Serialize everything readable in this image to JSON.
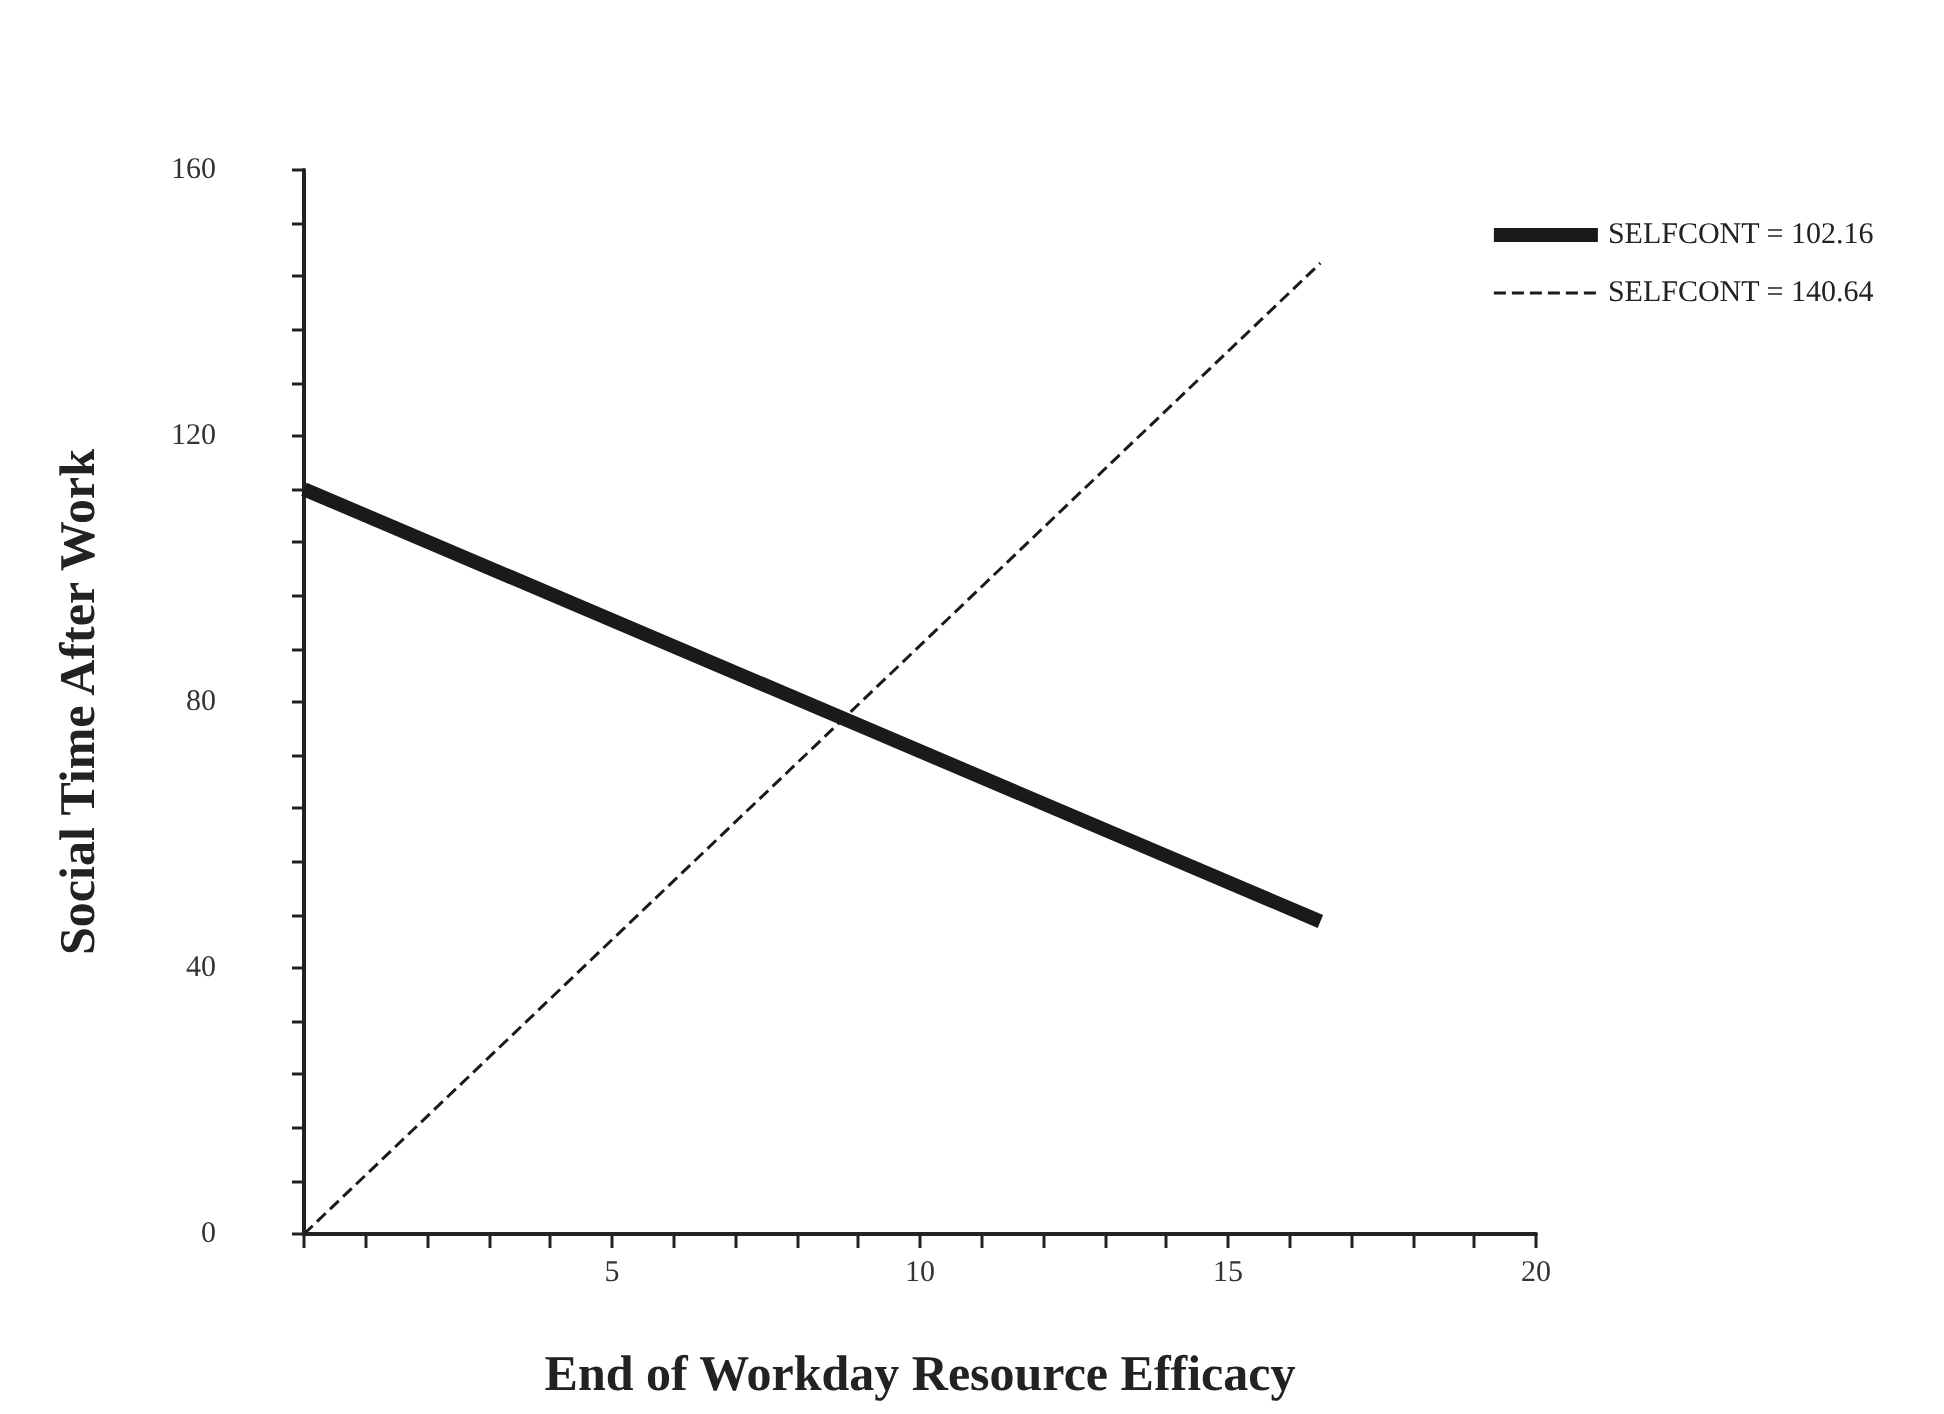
{
  "chart_data": {
    "type": "line",
    "xlabel": "End of Workday Resource Efficacy",
    "ylabel": "Social Time After Work",
    "xlim": [
      0,
      20
    ],
    "xticks": [
      {
        "value": 0,
        "label": null
      },
      {
        "value": 1,
        "label": null
      },
      {
        "value": 2,
        "label": null
      },
      {
        "value": 3,
        "label": null
      },
      {
        "value": 4,
        "label": null
      },
      5,
      {
        "value": 6,
        "label": null
      },
      {
        "value": 7,
        "label": null
      },
      {
        "value": 8,
        "label": null
      },
      {
        "value": 9,
        "label": null
      },
      10,
      {
        "value": 11,
        "label": null
      },
      {
        "value": 12,
        "label": null
      },
      {
        "value": 13,
        "label": null
      },
      {
        "value": 14,
        "label": null
      },
      15,
      {
        "value": 16,
        "label": null
      },
      {
        "value": 17,
        "label": null
      },
      {
        "value": 18,
        "label": null
      },
      {
        "value": 19,
        "label": null
      },
      20
    ],
    "ylim": [
      0,
      160
    ],
    "yticks": [
      0,
      {
        "value": 8,
        "label": null
      },
      {
        "value": 16,
        "label": null
      },
      {
        "value": 24,
        "label": null
      },
      {
        "value": 32,
        "label": null
      },
      40,
      {
        "value": 48,
        "label": null
      },
      {
        "value": 56,
        "label": null
      },
      {
        "value": 64,
        "label": null
      },
      {
        "value": 72,
        "label": null
      },
      80,
      {
        "value": 88,
        "label": null
      },
      {
        "value": 96,
        "label": null
      },
      {
        "value": 104,
        "label": null
      },
      {
        "value": 112,
        "label": null
      },
      120,
      {
        "value": 128,
        "label": null
      },
      {
        "value": 136,
        "label": null
      },
      {
        "value": 144,
        "label": null
      },
      {
        "value": 152,
        "label": null
      },
      160
    ],
    "x": [
      0,
      16.5
    ],
    "series": [
      {
        "name": "SELFCONT = 102.16",
        "color": "#1a1a1a",
        "line_style": "solid",
        "values": [
          112,
          47
        ]
      },
      {
        "name": "SELFCONT = 140.64",
        "color": "#1a1a1a",
        "line_style": "dashed",
        "values": [
          0,
          146
        ]
      }
    ],
    "legend": "top right",
    "grid": false,
    "marker": "none"
  }
}
